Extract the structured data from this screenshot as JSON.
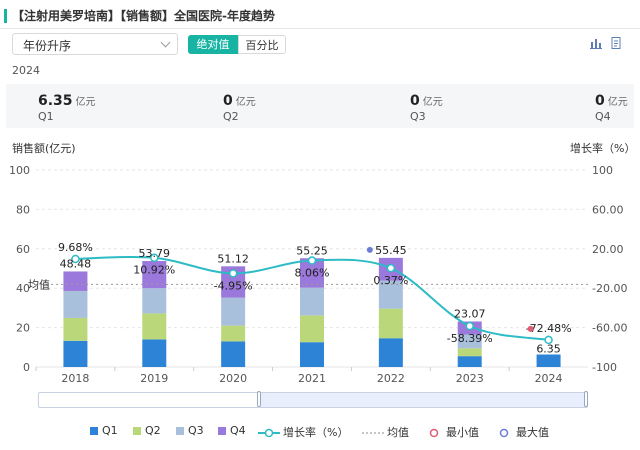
{
  "header": {
    "title": "【注射用美罗培南】【销售额】全国医院-年度趋势"
  },
  "controls": {
    "sort_value": "年份升序",
    "btn_absolute": "绝对值",
    "btn_percent": "百分比"
  },
  "summary": {
    "year": "2024",
    "unit": "亿元",
    "items": [
      {
        "q": "Q1",
        "value": "6.35"
      },
      {
        "q": "Q2",
        "value": "0"
      },
      {
        "q": "Q3",
        "value": "0"
      },
      {
        "q": "Q4",
        "value": "0"
      }
    ]
  },
  "icons": [
    "bar-chart-icon",
    "document-icon"
  ],
  "colors": {
    "accent": "#17b3a3",
    "q1": "#2d84d6",
    "q2": "#bad87a",
    "q3": "#a9c0dc",
    "q4": "#9b78db",
    "growth_line": "#2dbcc6",
    "min_marker": "#e05b75",
    "max_marker": "#6b7ed6"
  },
  "chart_data": {
    "type": "bar",
    "stacked": true,
    "categories": [
      "2018",
      "2019",
      "2020",
      "2021",
      "2022",
      "2023",
      "2024"
    ],
    "series": [
      {
        "name": "Q1",
        "values": [
          13.3,
          14.0,
          13.0,
          12.6,
          14.6,
          5.5,
          6.35
        ]
      },
      {
        "name": "Q2",
        "values": [
          11.6,
          13.2,
          8.0,
          13.6,
          15.0,
          4.0,
          0
        ]
      },
      {
        "name": "Q3",
        "values": [
          13.7,
          12.8,
          14.2,
          14.1,
          14.2,
          7.0,
          0
        ]
      },
      {
        "name": "Q4",
        "values": [
          9.9,
          13.8,
          15.9,
          14.9,
          11.6,
          6.6,
          0
        ]
      }
    ],
    "totals": [
      "48.48",
      "53.79",
      "51.12",
      "55.25",
      "55.45",
      "23.07",
      "6.35"
    ],
    "growth_rate": {
      "name": "增长率（%）",
      "values": [
        9.68,
        10.92,
        -4.95,
        8.06,
        0.37,
        -58.39,
        -72.48
      ],
      "labels": [
        "9.68%",
        "10.92%",
        "-4.95%",
        "8.06%",
        "0.37%",
        "-58.39%",
        "-72.48%"
      ]
    },
    "mean_label": "均值",
    "mean_value": 41.93,
    "min_point": {
      "series": "growth",
      "category": "2024"
    },
    "max_point": {
      "series": "totals",
      "category": "2022"
    },
    "left_axis": {
      "title": "销售额(亿元)",
      "min": 0,
      "max": 100,
      "ticks": [
        "0",
        "20",
        "40",
        "60",
        "80",
        "100"
      ]
    },
    "right_axis": {
      "title": "增长率（%）",
      "min": -100,
      "max": 100,
      "ticks": [
        "-100",
        "-60.00",
        "-20.00",
        "20.00",
        "60.00",
        "100"
      ]
    },
    "legend": [
      "Q1",
      "Q2",
      "Q3",
      "Q4",
      "增长率（%）",
      "均值",
      "最小值",
      "最大值"
    ]
  }
}
